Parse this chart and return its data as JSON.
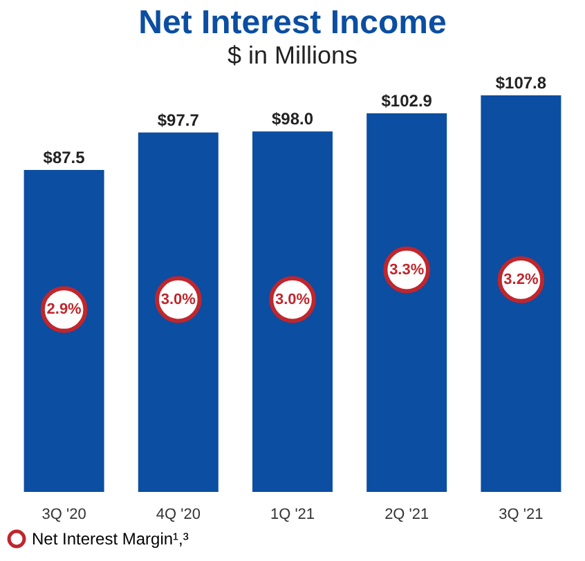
{
  "chart_data": {
    "type": "bar",
    "title": "Net Interest Income",
    "subtitle": "$ in Millions",
    "categories": [
      "3Q '20",
      "4Q '20",
      "1Q '21",
      "2Q '21",
      "3Q '21"
    ],
    "series": [
      {
        "color": "#0b4ea2",
        "values": [
          87.5,
          97.7,
          98.0,
          102.9,
          107.8
        ],
        "value_labels": [
          "$87.5",
          "$97.7",
          "$98.0",
          "$102.9",
          "$107.8"
        ]
      },
      {
        "type": "scatter",
        "axis": "y2",
        "name": "Net Interest Margin¹,³",
        "color": "#c0262d",
        "values": [
          2.9,
          3.0,
          3.0,
          3.3,
          3.2
        ],
        "value_labels": [
          "2.9%",
          "3.0%",
          "3.0%",
          "3.3%",
          "3.2%"
        ]
      }
    ],
    "tick_labels": "x",
    "grid": false,
    "legend": "bottom",
    "marker": "circle"
  }
}
